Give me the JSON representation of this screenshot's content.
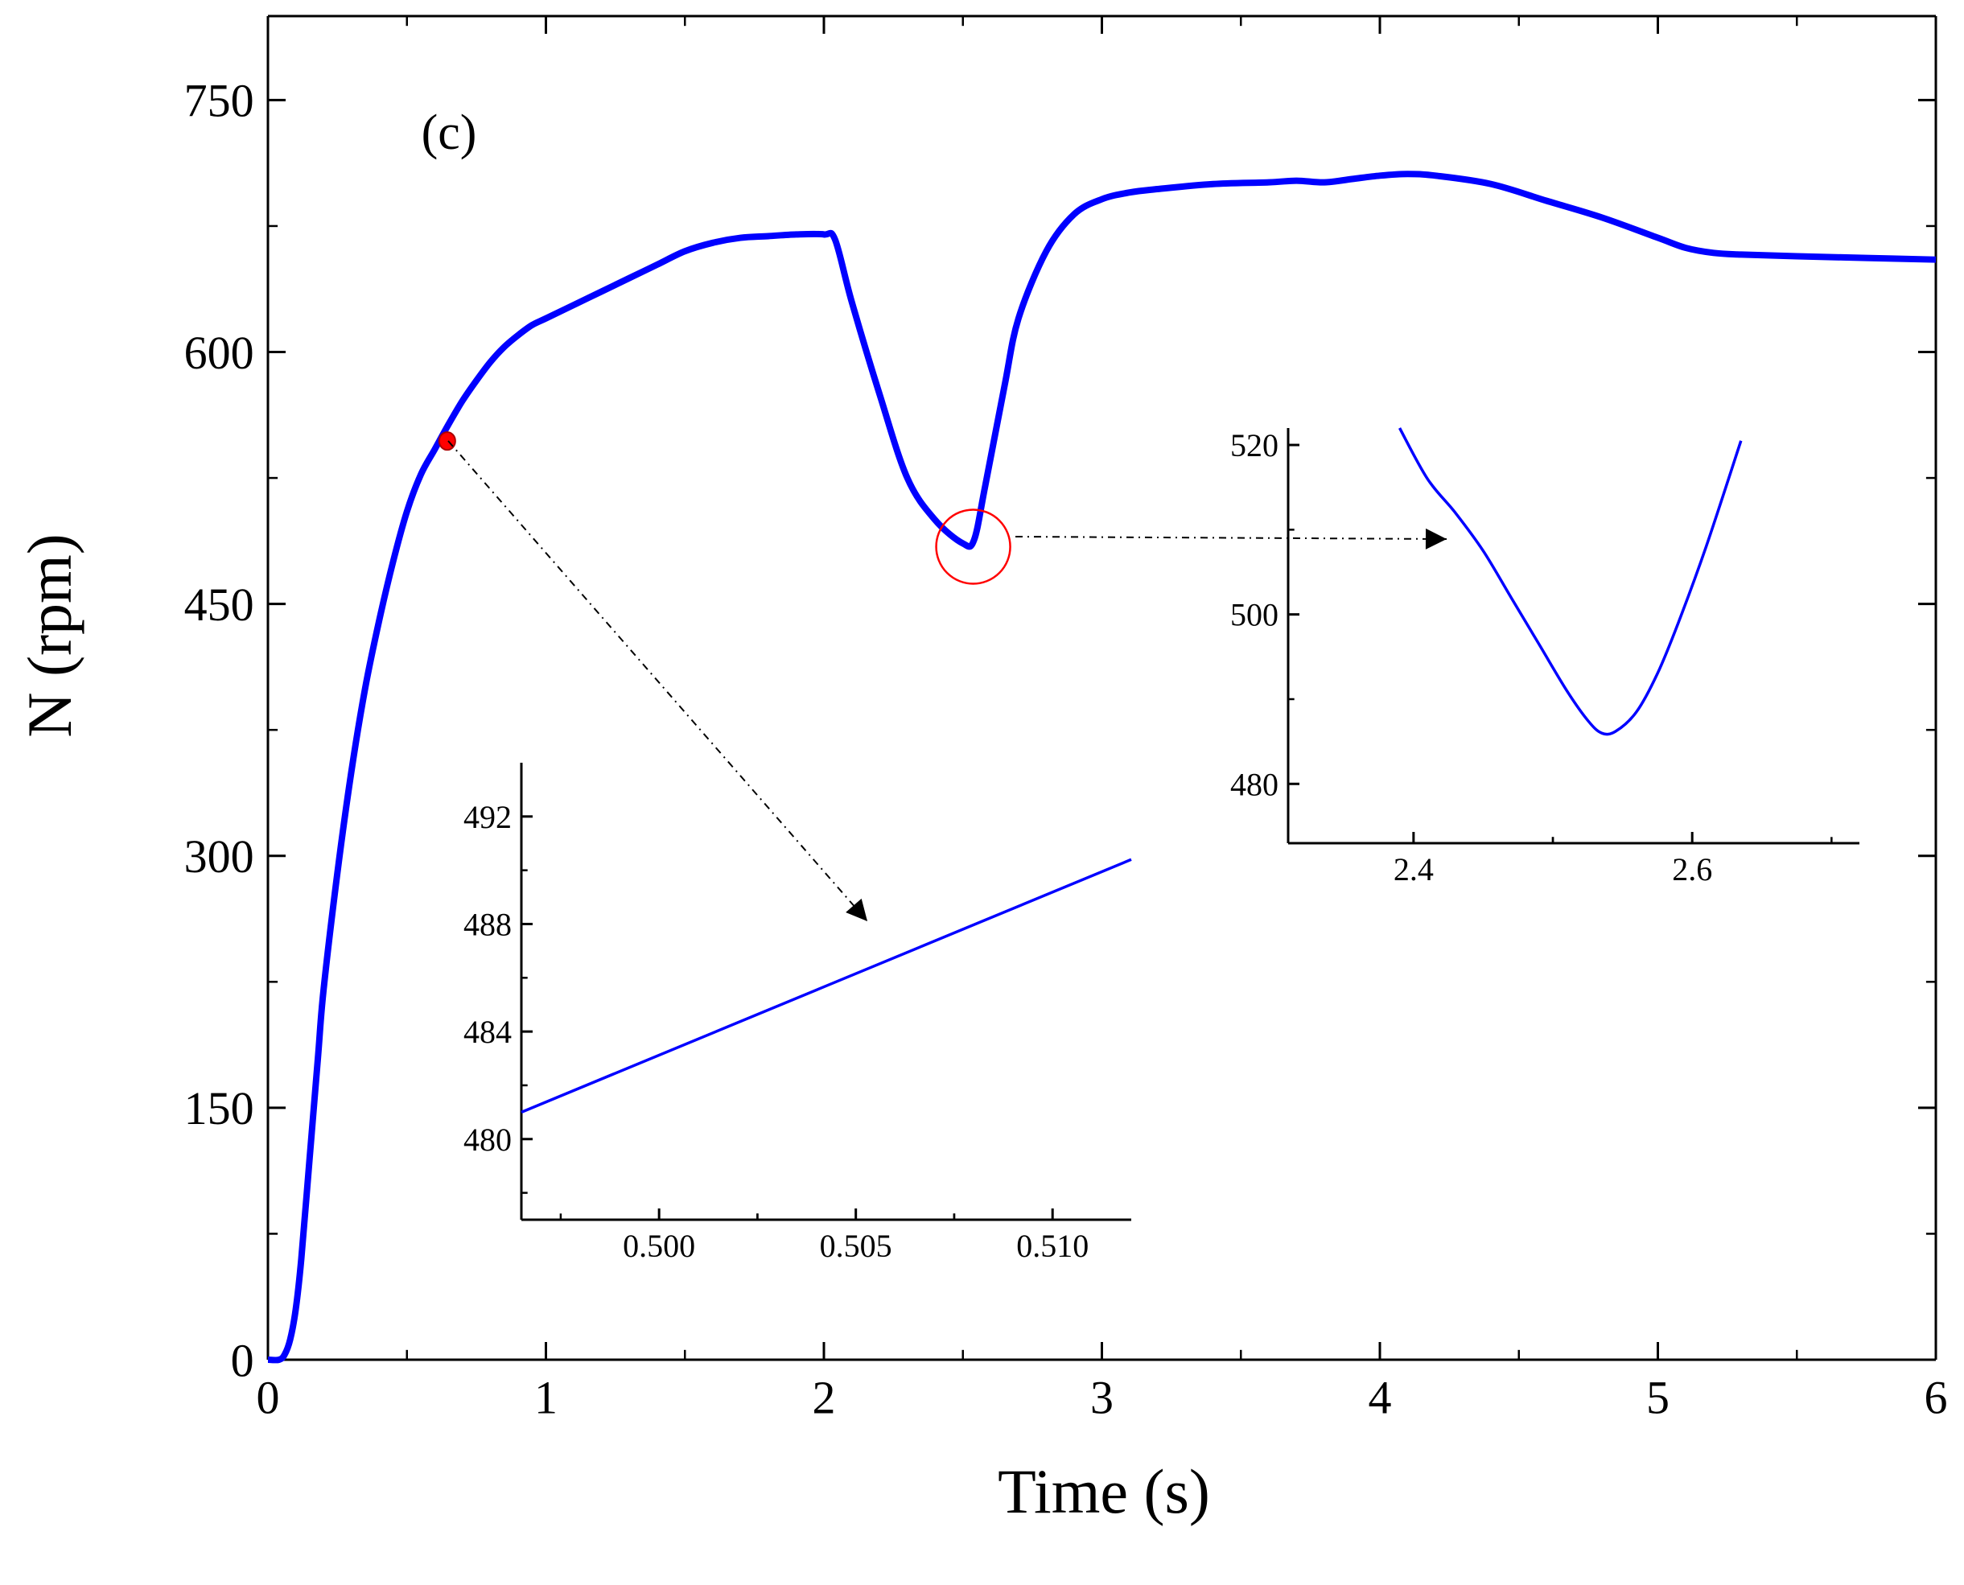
{
  "chart_data": [
    {
      "id": "main",
      "type": "line",
      "panel_label": "(c)",
      "xlabel": "Time (s)",
      "ylabel": "N (rpm)",
      "xlim": [
        0,
        6
      ],
      "ylim": [
        0,
        800
      ],
      "x_ticks": [
        0,
        1,
        2,
        3,
        4,
        5,
        6
      ],
      "x_tick_labels": [
        "0",
        "1",
        "2",
        "3",
        "4",
        "5",
        "6"
      ],
      "y_ticks": [
        0,
        150,
        300,
        450,
        600,
        750
      ],
      "y_tick_labels": [
        "0",
        "150",
        "300",
        "450",
        "600",
        "750"
      ],
      "grid": false,
      "series": [
        {
          "name": "N",
          "color": "#0000ff",
          "x": [
            0,
            0.04,
            0.06,
            0.08,
            0.1,
            0.12,
            0.15,
            0.18,
            0.2,
            0.25,
            0.3,
            0.35,
            0.4,
            0.45,
            0.5,
            0.55,
            0.6,
            0.65,
            0.7,
            0.75,
            0.8,
            0.85,
            0.9,
            0.95,
            1.0,
            1.1,
            1.2,
            1.3,
            1.4,
            1.5,
            1.6,
            1.7,
            1.8,
            1.9,
            2.0,
            2.04,
            2.1,
            2.2,
            2.3,
            2.4,
            2.5,
            2.54,
            2.58,
            2.65,
            2.7,
            2.8,
            2.9,
            3.0,
            3.1,
            3.2,
            3.4,
            3.6,
            3.7,
            3.8,
            3.9,
            4.0,
            4.1,
            4.2,
            4.4,
            4.6,
            4.8,
            5.0,
            5.1,
            5.2,
            5.3,
            5.5,
            5.75,
            6.0
          ],
          "y": [
            0,
            0,
            3,
            12,
            30,
            60,
            120,
            180,
            220,
            290,
            350,
            400,
            440,
            475,
            505,
            527,
            542,
            557,
            571,
            583,
            594,
            603,
            610,
            616,
            620,
            628,
            636,
            644,
            652,
            660,
            665,
            668,
            669,
            670,
            670,
            667,
            630,
            575,
            525,
            500,
            486,
            488,
            520,
            580,
            620,
            660,
            682,
            691,
            695,
            697,
            700,
            701,
            702,
            701,
            703,
            705,
            706,
            705,
            700,
            690,
            680,
            668,
            662,
            659,
            658,
            657,
            656,
            655
          ]
        }
      ],
      "annotations": [
        {
          "type": "marker",
          "shape": "dot",
          "color": "#ff0000",
          "x": 0.645,
          "y": 547
        },
        {
          "type": "circle",
          "color": "#ff0000",
          "x": 2.54,
          "y": 486
        }
      ]
    },
    {
      "id": "inset_left",
      "type": "line",
      "xlim": [
        0.4965,
        0.512
      ],
      "ylim": [
        477,
        494
      ],
      "x_ticks": [
        0.5,
        0.505,
        0.51
      ],
      "x_tick_labels": [
        "0.500",
        "0.505",
        "0.510"
      ],
      "y_ticks": [
        480,
        484,
        488,
        492
      ],
      "y_tick_labels": [
        "480",
        "484",
        "488",
        "492"
      ],
      "grid": false,
      "series": [
        {
          "name": "N",
          "color": "#0000ff",
          "x": [
            0.4965,
            0.512
          ],
          "y": [
            481.0,
            490.4
          ]
        }
      ]
    },
    {
      "id": "inset_right",
      "type": "line",
      "xlim": [
        2.31,
        2.72
      ],
      "ylim": [
        473,
        522
      ],
      "x_ticks": [
        2.4,
        2.6
      ],
      "x_tick_labels": [
        "2.4",
        "2.6"
      ],
      "y_ticks": [
        480,
        500,
        520
      ],
      "y_tick_labels": [
        "480",
        "500",
        "520"
      ],
      "grid": false,
      "series": [
        {
          "name": "N",
          "color": "#0000ff",
          "x": [
            2.39,
            2.41,
            2.43,
            2.45,
            2.47,
            2.49,
            2.51,
            2.525,
            2.535,
            2.545,
            2.56,
            2.575,
            2.59,
            2.61,
            2.635
          ],
          "y": [
            522,
            516,
            512,
            507.5,
            502,
            496.5,
            491,
            487.5,
            486,
            486.2,
            488.5,
            493,
            499,
            508,
            520.5
          ]
        }
      ]
    }
  ]
}
